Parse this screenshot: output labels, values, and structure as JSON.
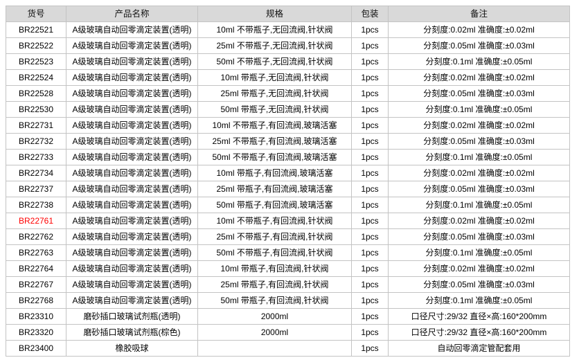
{
  "colors": {
    "header_bg": "#d9d9d9",
    "border": "#c3c3c3",
    "highlight_code": "#ff0000",
    "text": "#000000"
  },
  "table": {
    "columns": [
      "货号",
      "产品名称",
      "规格",
      "包装",
      "备注"
    ],
    "rows": [
      {
        "highlight": false,
        "cells": [
          "BR22521",
          "A级玻璃自动回零滴定装置(透明)",
          "10ml 不带瓶子,无回流阀,针状阀",
          "1pcs",
          "分刻度:0.02ml 准确度:±0.02ml"
        ]
      },
      {
        "highlight": false,
        "cells": [
          "BR22522",
          "A级玻璃自动回零滴定装置(透明)",
          "25ml 不带瓶子,无回流阀,针状阀",
          "1pcs",
          "分刻度:0.05ml 准确度:±0.03ml"
        ]
      },
      {
        "highlight": false,
        "cells": [
          "BR22523",
          "A级玻璃自动回零滴定装置(透明)",
          "50ml 不带瓶子,无回流阀,针状阀",
          "1pcs",
          "分刻度:0.1ml 准确度:±0.05ml"
        ]
      },
      {
        "highlight": false,
        "cells": [
          "BR22524",
          "A级玻璃自动回零滴定装置(透明)",
          "10ml 带瓶子,无回流阀,针状阀",
          "1pcs",
          "分刻度:0.02ml 准确度:±0.02ml"
        ]
      },
      {
        "highlight": false,
        "cells": [
          "BR22528",
          "A级玻璃自动回零滴定装置(透明)",
          "25ml 带瓶子,无回流阀,针状阀",
          "1pcs",
          "分刻度:0.05ml 准确度:±0.03ml"
        ]
      },
      {
        "highlight": false,
        "cells": [
          "BR22530",
          "A级玻璃自动回零滴定装置(透明)",
          "50ml 带瓶子,无回流阀,针状阀",
          "1pcs",
          "分刻度:0.1ml 准确度:±0.05ml"
        ]
      },
      {
        "highlight": false,
        "cells": [
          "BR22731",
          "A级玻璃自动回零滴定装置(透明)",
          "10ml 不带瓶子,有回流阀,玻璃活塞",
          "1pcs",
          "分刻度:0.02ml 准确度:±0.02ml"
        ]
      },
      {
        "highlight": false,
        "cells": [
          "BR22732",
          "A级玻璃自动回零滴定装置(透明)",
          "25ml 不带瓶子,有回流阀,玻璃活塞",
          "1pcs",
          "分刻度:0.05ml 准确度:±0.03ml"
        ]
      },
      {
        "highlight": false,
        "cells": [
          "BR22733",
          "A级玻璃自动回零滴定装置(透明)",
          "50ml 不带瓶子,有回流阀,玻璃活塞",
          "1pcs",
          "分刻度:0.1ml 准确度:±0.05ml"
        ]
      },
      {
        "highlight": false,
        "cells": [
          "BR22734",
          "A级玻璃自动回零滴定装置(透明)",
          "10ml 带瓶子,有回流阀,玻璃活塞",
          "1pcs",
          "分刻度:0.02ml 准确度:±0.02ml"
        ]
      },
      {
        "highlight": false,
        "cells": [
          "BR22737",
          "A级玻璃自动回零滴定装置(透明)",
          "25ml 带瓶子,有回流阀,玻璃活塞",
          "1pcs",
          "分刻度:0.05ml 准确度:±0.03ml"
        ]
      },
      {
        "highlight": false,
        "cells": [
          "BR22738",
          "A级玻璃自动回零滴定装置(透明)",
          "50ml 带瓶子,有回流阀,玻璃活塞",
          "1pcs",
          "分刻度:0.1ml 准确度:±0.05ml"
        ]
      },
      {
        "highlight": true,
        "cells": [
          "BR22761",
          "A级玻璃自动回零滴定装置(透明)",
          "10ml 不带瓶子,有回流阀,针状阀",
          "1pcs",
          "分刻度:0.02ml 准确度:±0.02ml"
        ]
      },
      {
        "highlight": false,
        "cells": [
          "BR22762",
          "A级玻璃自动回零滴定装置(透明)",
          "25ml 不带瓶子,有回流阀,针状阀",
          "1pcs",
          "分刻度:0.05ml 准确度:±0.03ml"
        ]
      },
      {
        "highlight": false,
        "cells": [
          "BR22763",
          "A级玻璃自动回零滴定装置(透明)",
          "50ml 不带瓶子,有回流阀,针状阀",
          "1pcs",
          "分刻度:0.1ml 准确度:±0.05ml"
        ]
      },
      {
        "highlight": false,
        "cells": [
          "BR22764",
          "A级玻璃自动回零滴定装置(透明)",
          "10ml 带瓶子,有回流阀,针状阀",
          "1pcs",
          "分刻度:0.02ml 准确度:±0.02ml"
        ]
      },
      {
        "highlight": false,
        "cells": [
          "BR22767",
          "A级玻璃自动回零滴定装置(透明)",
          "25ml 带瓶子,有回流阀,针状阀",
          "1pcs",
          "分刻度:0.05ml 准确度:±0.03ml"
        ]
      },
      {
        "highlight": false,
        "cells": [
          "BR22768",
          "A级玻璃自动回零滴定装置(透明)",
          "50ml 带瓶子,有回流阀,针状阀",
          "1pcs",
          "分刻度:0.1ml 准确度:±0.05ml"
        ]
      },
      {
        "highlight": false,
        "cells": [
          "BR23310",
          "磨砂插口玻璃试剂瓶(透明)",
          "2000ml",
          "1pcs",
          "口径尺寸:29/32 直径×高:160*200mm"
        ]
      },
      {
        "highlight": false,
        "cells": [
          "BR23320",
          "磨砂插口玻璃试剂瓶(棕色)",
          "2000ml",
          "1pcs",
          "口径尺寸:29/32 直径×高:160*200mm"
        ]
      },
      {
        "highlight": false,
        "cells": [
          "BR23400",
          "橡胶吸球",
          "",
          "1pcs",
          "自动回零滴定管配套用"
        ]
      }
    ]
  }
}
